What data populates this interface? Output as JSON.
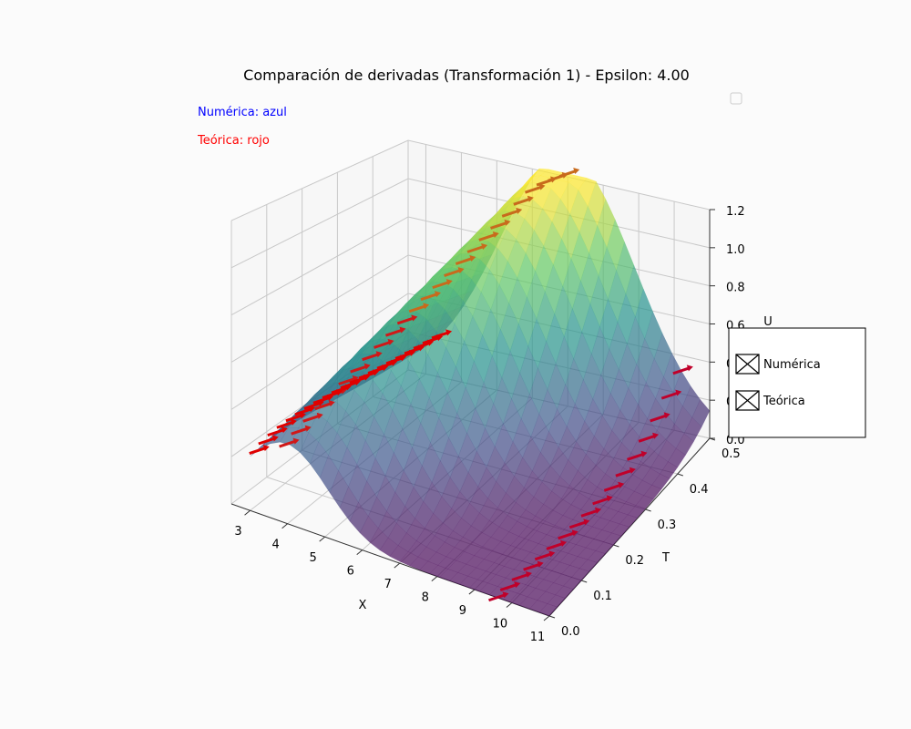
{
  "chart_data": {
    "type": "surface",
    "title": "Comparación de derivadas (Transformación 1) - Epsilon: 4.00",
    "annotations": [
      {
        "text": "Numérica: azul",
        "color": "#0000ff"
      },
      {
        "text": "Teórica: rojo",
        "color": "#ff0000"
      }
    ],
    "xlabel": "X",
    "ylabel": "T",
    "zlabel": "U",
    "x_ticks": [
      "3",
      "4",
      "5",
      "6",
      "7",
      "8",
      "9",
      "10",
      "11"
    ],
    "y_ticks": [
      "0.0",
      "0.1",
      "0.2",
      "0.3",
      "0.4",
      "0.5"
    ],
    "z_ticks": [
      "0.0",
      "0.2",
      "0.4",
      "0.6",
      "0.8",
      "1.0",
      "1.2"
    ],
    "xlim": [
      2.5,
      11
    ],
    "ylim": [
      0,
      0.5
    ],
    "zlim": [
      0,
      1.2
    ],
    "colormap": "viridis",
    "legend": {
      "placement": "right",
      "entries": [
        "Numérica",
        "Teórica"
      ]
    },
    "empty_legend_placement": "top-right",
    "vector_colors": {
      "numeric": "#0000ff",
      "theoretical": "#ff0000"
    },
    "grid": true
  }
}
